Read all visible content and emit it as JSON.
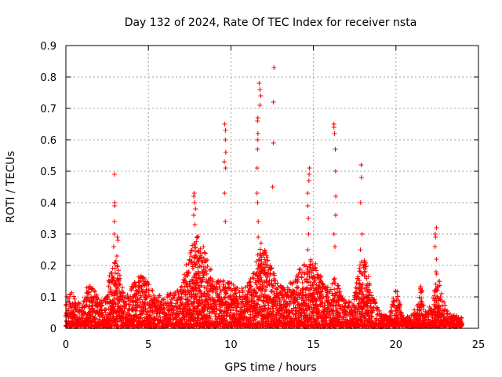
{
  "chart_data": {
    "type": "scatter",
    "title": "Day 132 of 2024, Rate Of TEC Index for receiver nsta",
    "xlabel": "GPS time / hours",
    "ylabel": "ROTI / TECUs",
    "xlim": [
      0,
      25
    ],
    "ylim": [
      0,
      0.9
    ],
    "x_ticks": [
      "0",
      "5",
      "10",
      "15",
      "20",
      "25"
    ],
    "y_ticks": [
      "0",
      "0.1",
      "0.2",
      "0.3",
      "0.4",
      "0.5",
      "0.6",
      "0.7",
      "0.8",
      "0.9"
    ],
    "grid": true,
    "marker": "+",
    "color": "#ff0000",
    "envelope": [
      [
        0.0,
        0.09
      ],
      [
        0.3,
        0.12
      ],
      [
        0.6,
        0.08
      ],
      [
        1.0,
        0.07
      ],
      [
        1.3,
        0.14
      ],
      [
        1.7,
        0.12
      ],
      [
        2.0,
        0.09
      ],
      [
        2.4,
        0.1
      ],
      [
        2.7,
        0.19
      ],
      [
        3.0,
        0.22
      ],
      [
        3.3,
        0.17
      ],
      [
        3.6,
        0.09
      ],
      [
        4.0,
        0.13
      ],
      [
        4.5,
        0.17
      ],
      [
        5.0,
        0.14
      ],
      [
        5.5,
        0.1
      ],
      [
        6.0,
        0.1
      ],
      [
        6.5,
        0.11
      ],
      [
        7.0,
        0.13
      ],
      [
        7.4,
        0.22
      ],
      [
        7.7,
        0.27
      ],
      [
        8.0,
        0.29
      ],
      [
        8.3,
        0.26
      ],
      [
        8.7,
        0.2
      ],
      [
        9.0,
        0.15
      ],
      [
        9.5,
        0.15
      ],
      [
        10.0,
        0.14
      ],
      [
        10.5,
        0.12
      ],
      [
        11.0,
        0.13
      ],
      [
        11.4,
        0.18
      ],
      [
        11.8,
        0.27
      ],
      [
        12.1,
        0.25
      ],
      [
        12.4,
        0.2
      ],
      [
        12.8,
        0.14
      ],
      [
        13.2,
        0.13
      ],
      [
        13.6,
        0.14
      ],
      [
        14.0,
        0.17
      ],
      [
        14.4,
        0.2
      ],
      [
        14.8,
        0.22
      ],
      [
        15.2,
        0.2
      ],
      [
        15.6,
        0.14
      ],
      [
        16.0,
        0.12
      ],
      [
        16.3,
        0.16
      ],
      [
        16.7,
        0.11
      ],
      [
        17.0,
        0.08
      ],
      [
        17.4,
        0.08
      ],
      [
        17.8,
        0.2
      ],
      [
        18.1,
        0.22
      ],
      [
        18.5,
        0.12
      ],
      [
        18.9,
        0.06
      ],
      [
        19.2,
        0.04
      ],
      [
        19.6,
        0.03
      ],
      [
        20.0,
        0.13
      ],
      [
        20.4,
        0.04
      ],
      [
        20.8,
        0.03
      ],
      [
        21.2,
        0.06
      ],
      [
        21.5,
        0.14
      ],
      [
        21.8,
        0.05
      ],
      [
        22.2,
        0.08
      ],
      [
        22.5,
        0.18
      ],
      [
        22.8,
        0.1
      ],
      [
        23.2,
        0.04
      ],
      [
        23.6,
        0.04
      ],
      [
        24.0,
        0.03
      ]
    ],
    "spikes": [
      {
        "x": 2.9,
        "y": [
          0.26,
          0.3,
          0.34,
          0.39,
          0.4,
          0.49
        ]
      },
      {
        "x": 3.1,
        "y": [
          0.2,
          0.23,
          0.28,
          0.29
        ]
      },
      {
        "x": 7.8,
        "y": [
          0.33,
          0.36,
          0.38,
          0.4,
          0.42,
          0.43
        ]
      },
      {
        "x": 9.65,
        "y": [
          0.34,
          0.43,
          0.51,
          0.53,
          0.56,
          0.6,
          0.63,
          0.65
        ]
      },
      {
        "x": 11.6,
        "y": [
          0.29,
          0.34,
          0.4,
          0.43,
          0.51,
          0.57,
          0.6,
          0.62,
          0.66,
          0.67
        ]
      },
      {
        "x": 11.75,
        "y": [
          0.71,
          0.74,
          0.76,
          0.78
        ]
      },
      {
        "x": 12.55,
        "y": [
          0.45,
          0.59,
          0.72,
          0.83
        ]
      },
      {
        "x": 14.7,
        "y": [
          0.25,
          0.3,
          0.35,
          0.39,
          0.43,
          0.47,
          0.49,
          0.51
        ]
      },
      {
        "x": 16.3,
        "y": [
          0.26,
          0.3,
          0.36,
          0.42,
          0.5,
          0.57,
          0.62,
          0.64,
          0.65
        ]
      },
      {
        "x": 17.9,
        "y": [
          0.25,
          0.3,
          0.4,
          0.48,
          0.52
        ]
      },
      {
        "x": 22.4,
        "y": [
          0.18,
          0.22,
          0.26,
          0.29,
          0.3,
          0.32
        ]
      }
    ]
  }
}
